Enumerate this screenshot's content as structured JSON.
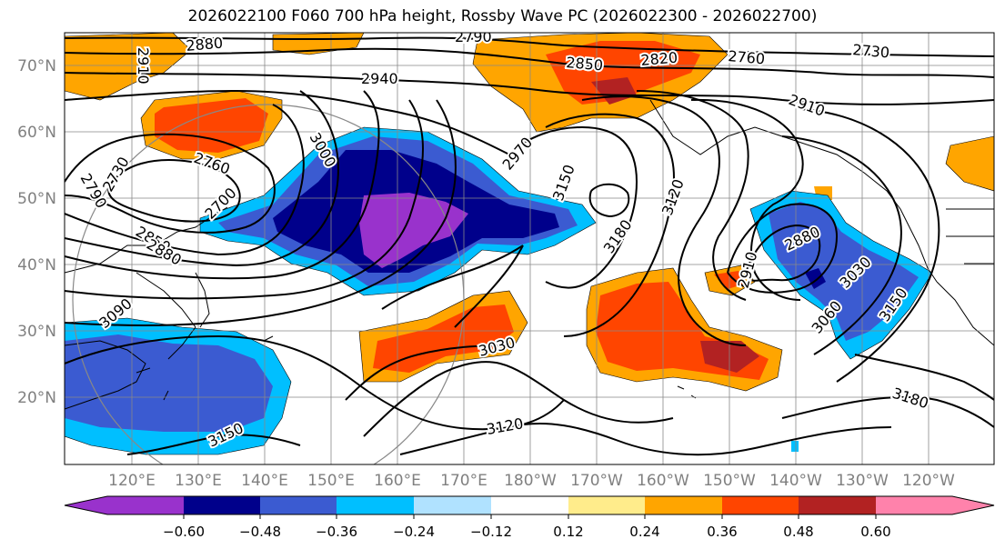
{
  "title": "2026022100 F060 700 hPa height, Rossby Wave PC (2026022300 - 2026022700)",
  "lat_labels": [
    "70°N",
    "60°N",
    "50°N",
    "40°N",
    "30°N",
    "20°N"
  ],
  "lon_labels": [
    "120°E",
    "130°E",
    "140°E",
    "150°E",
    "160°E",
    "170°E",
    "180°W",
    "170°W",
    "160°W",
    "150°W",
    "140°W",
    "130°W",
    "120°W"
  ],
  "contour_labels": [
    "2880",
    "2910",
    "2790",
    "2850",
    "2820",
    "2760",
    "2730",
    "2940",
    "2910",
    "3000",
    "2970",
    "3150",
    "3120",
    "3180",
    "2760",
    "2730",
    "2790",
    "2700",
    "2850",
    "2880",
    "3090",
    "2910",
    "2880",
    "3030",
    "3060",
    "3150",
    "3030",
    "3180",
    "3120",
    "3150"
  ],
  "colorbar": {
    "ticks": [
      "−0.60",
      "−0.48",
      "−0.36",
      "−0.24",
      "−0.12",
      "0.12",
      "0.24",
      "0.36",
      "0.48",
      "0.60"
    ],
    "colors": [
      "#9932cc",
      "#00008b",
      "#3b5bd1",
      "#00bfff",
      "#b0e2ff",
      "#ffffff",
      "#ffec8b",
      "#ffa500",
      "#ff4500",
      "#b22222",
      "#ff82ab"
    ]
  },
  "fill_colors": {
    "neg_strong": "#9932cc",
    "neg_dark": "#00008b",
    "neg_mid": "#3b5bd1",
    "neg_light": "#00bfff",
    "neg_faint": "#b0e2ff",
    "pos_faint": "#ffec8b",
    "pos_light": "#ffa500",
    "pos_mid": "#ff4500",
    "pos_dark": "#b22222"
  }
}
